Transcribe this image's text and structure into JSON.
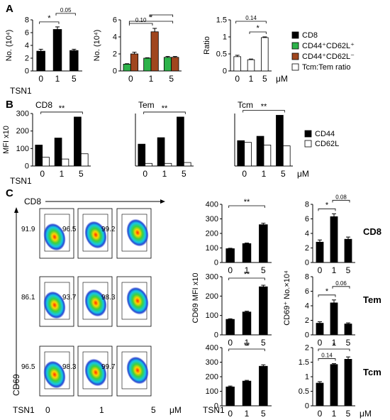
{
  "colors": {
    "black": "#000000",
    "green": "#2db34a",
    "brown": "#a0461e",
    "white": "#ffffff"
  },
  "panels": {
    "a": "A",
    "b": "B",
    "c": "C"
  },
  "legend_a": [
    {
      "label": "CD8",
      "color": "#000000"
    },
    {
      "label": "CD44⁺CD62L⁺",
      "color": "#2db34a"
    },
    {
      "label": "CD44⁺CD62L⁻",
      "color": "#a0461e"
    },
    {
      "label": "Tcm:Tem ratio",
      "color": "#ffffff"
    }
  ],
  "legend_b": [
    {
      "label": "CD44",
      "color": "#000000"
    },
    {
      "label": "CD62L",
      "color": "#ffffff"
    }
  ],
  "row_labels": {
    "tsn1": "TSN1",
    "um": "μM"
  },
  "flow": {
    "x_label": "CD8",
    "y_label": "CD69",
    "doses": [
      "0",
      "1",
      "5"
    ],
    "rows": [
      {
        "pcts": [
          "91.9",
          "96.5",
          "99.2"
        ]
      },
      {
        "pcts": [
          "86.1",
          "93.7",
          "98.3"
        ]
      },
      {
        "pcts": [
          "96.5",
          "98.3",
          "99.7"
        ]
      }
    ]
  },
  "side_labels": [
    "CD8",
    "Tem",
    "Tcm"
  ],
  "ylabels_c": {
    "mfi": "CD69 MFI x10",
    "no": "CD69⁺ No.×10⁴"
  },
  "chart_data": [
    {
      "id": "a1",
      "type": "bar",
      "ylabel": "No. (10⁴)",
      "categories": [
        "0",
        "1",
        "5"
      ],
      "ylim": [
        0,
        8
      ],
      "yticks": [
        0,
        2,
        4,
        6,
        8
      ],
      "series": [
        {
          "name": "CD8",
          "color": "#000000",
          "values": [
            3.1,
            6.5,
            3.2
          ],
          "errors": [
            0.3,
            0.4,
            0.2
          ]
        }
      ],
      "annotations": [
        {
          "from": 0,
          "to": 1,
          "text": "*"
        },
        {
          "from": 1,
          "to": 2,
          "text": "0.05"
        }
      ]
    },
    {
      "id": "a2",
      "type": "bar",
      "ylabel": "No. (10⁴)",
      "categories": [
        "0",
        "1",
        "5"
      ],
      "ylim": [
        0,
        6
      ],
      "yticks": [
        0,
        2,
        4,
        6
      ],
      "series": [
        {
          "name": "CD44⁺CD62L⁺",
          "color": "#2db34a",
          "values": [
            0.8,
            1.5,
            1.6
          ],
          "errors": [
            0.05,
            0.05,
            0.1
          ]
        },
        {
          "name": "CD44⁺CD62L⁻",
          "color": "#a0461e",
          "values": [
            2.0,
            4.6,
            1.6
          ],
          "errors": [
            0.2,
            0.4,
            0.1
          ]
        }
      ],
      "annotations": [
        {
          "from": 0,
          "to": 2,
          "text": "*"
        },
        {
          "from": 0,
          "to": 1,
          "text": "0.10"
        },
        {
          "from": 1,
          "to": 2,
          "text": ""
        }
      ]
    },
    {
      "id": "a3",
      "type": "bar",
      "ylabel": "Ratio",
      "categories": [
        "0",
        "1",
        "5"
      ],
      "unit": "μM",
      "ylim": [
        0,
        1.5
      ],
      "yticks": [
        0,
        0.5,
        1.0,
        1.5
      ],
      "series": [
        {
          "name": "Tcm:Tem ratio",
          "color": "#ffffff",
          "values": [
            0.42,
            0.33,
            0.98
          ],
          "errors": [
            0.04,
            0.02,
            0.02
          ]
        }
      ],
      "annotations": [
        {
          "from": 0,
          "to": 2,
          "text": "0.14"
        },
        {
          "from": 1,
          "to": 2,
          "text": "*"
        }
      ]
    },
    {
      "id": "b1",
      "type": "bar",
      "title": "CD8",
      "ylabel": "MFI x10",
      "categories": [
        "0",
        "1",
        "5"
      ],
      "ylim": [
        0,
        300
      ],
      "yticks": [
        0,
        100,
        200,
        300
      ],
      "series": [
        {
          "name": "CD44",
          "color": "#000000",
          "values": [
            120,
            160,
            280
          ]
        },
        {
          "name": "CD62L",
          "color": "#ffffff",
          "values": [
            50,
            40,
            70
          ]
        }
      ],
      "annotations": [
        {
          "from": 0,
          "to": 2,
          "text": "**"
        }
      ]
    },
    {
      "id": "b2",
      "type": "bar",
      "title": "Tem",
      "categories": [
        "0",
        "1",
        "5"
      ],
      "ylim": [
        0,
        300
      ],
      "series": [
        {
          "name": "CD44",
          "color": "#000000",
          "values": [
            125,
            162,
            280
          ]
        },
        {
          "name": "CD62L",
          "color": "#ffffff",
          "values": [
            15,
            15,
            20
          ]
        }
      ],
      "annotations": [
        {
          "from": 0,
          "to": 2,
          "text": "**"
        }
      ]
    },
    {
      "id": "b3",
      "type": "bar",
      "title": "Tcm",
      "categories": [
        "0",
        "1",
        "5"
      ],
      "unit": "μM",
      "ylim": [
        0,
        300
      ],
      "series": [
        {
          "name": "CD44",
          "color": "#000000",
          "values": [
            145,
            170,
            290
          ]
        },
        {
          "name": "CD62L",
          "color": "#ffffff",
          "values": [
            135,
            120,
            115
          ]
        }
      ],
      "annotations": [
        {
          "from": 0,
          "to": 2,
          "text": "**"
        }
      ]
    },
    {
      "id": "c1",
      "type": "bar",
      "categories": [
        "0",
        "1",
        "5"
      ],
      "ylim": [
        0,
        400
      ],
      "yticks": [
        0,
        100,
        200,
        300,
        400
      ],
      "series": [
        {
          "name": "CD8",
          "color": "#000000",
          "values": [
            95,
            130,
            260
          ],
          "errors": [
            3,
            4,
            10
          ]
        }
      ],
      "annotations": [
        {
          "from": 0,
          "to": 2,
          "text": "**"
        }
      ]
    },
    {
      "id": "c2",
      "type": "bar",
      "categories": [
        "0",
        "1",
        "5"
      ],
      "ylim": [
        0,
        8
      ],
      "yticks": [
        0,
        2,
        4,
        6,
        8
      ],
      "series": [
        {
          "name": "CD8",
          "color": "#000000",
          "values": [
            2.8,
            6.3,
            3.2
          ],
          "errors": [
            0.3,
            0.4,
            0.3
          ]
        }
      ],
      "annotations": [
        {
          "from": 0,
          "to": 1,
          "text": "*"
        },
        {
          "from": 1,
          "to": 2,
          "text": "0.08"
        }
      ]
    },
    {
      "id": "c3",
      "type": "bar",
      "categories": [
        "0",
        "1",
        "5"
      ],
      "ylim": [
        0,
        300
      ],
      "yticks": [
        0,
        100,
        200,
        300
      ],
      "series": [
        {
          "name": "Tem",
          "color": "#000000",
          "values": [
            80,
            118,
            248
          ],
          "errors": [
            3,
            4,
            8
          ]
        }
      ],
      "annotations": [
        {
          "from": 0,
          "to": 2,
          "text": "**"
        }
      ]
    },
    {
      "id": "c4",
      "type": "bar",
      "categories": [
        "0",
        "1",
        "5"
      ],
      "ylim": [
        0,
        8
      ],
      "yticks": [
        0,
        2,
        4,
        6,
        8
      ],
      "series": [
        {
          "name": "Tem",
          "color": "#000000",
          "values": [
            1.6,
            4.4,
            1.5
          ],
          "errors": [
            0.2,
            0.4,
            0.15
          ]
        }
      ],
      "annotations": [
        {
          "from": 0,
          "to": 1,
          "text": "*"
        },
        {
          "from": 1,
          "to": 2,
          "text": "0.06"
        }
      ]
    },
    {
      "id": "c5",
      "type": "bar",
      "categories": [
        "0",
        "1",
        "5"
      ],
      "ylim": [
        0,
        400
      ],
      "yticks": [
        0,
        100,
        200,
        300,
        400
      ],
      "series": [
        {
          "name": "Tcm",
          "color": "#000000",
          "values": [
            130,
            170,
            272
          ],
          "errors": [
            6,
            5,
            10
          ]
        }
      ],
      "annotations": [
        {
          "from": 0,
          "to": 2,
          "text": "**"
        }
      ]
    },
    {
      "id": "c6",
      "type": "bar",
      "categories": [
        "0",
        "1",
        "5"
      ],
      "unit": "μM",
      "ylim": [
        0,
        2.0
      ],
      "yticks": [
        0,
        0.5,
        1.0,
        1.5,
        2.0
      ],
      "series": [
        {
          "name": "Tcm",
          "color": "#000000",
          "values": [
            0.78,
            1.42,
            1.6
          ],
          "errors": [
            0.05,
            0.03,
            0.08
          ]
        }
      ],
      "annotations": [
        {
          "from": 0,
          "to": 2,
          "text": "*"
        },
        {
          "from": 0,
          "to": 1,
          "text": "0.14"
        }
      ]
    }
  ]
}
